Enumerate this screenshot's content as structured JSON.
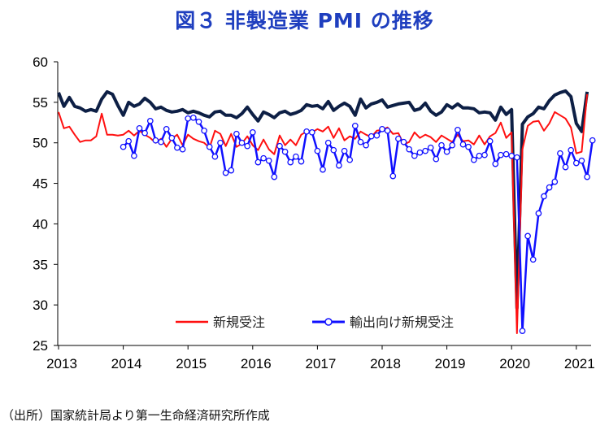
{
  "title": "図３ 非製造業 PMI の推移",
  "source": "（出所）国家統計局より第一生命経済研究所作成",
  "chart_data": {
    "type": "line",
    "title": "図３ 非製造業 PMI の推移",
    "xlabel": "",
    "ylabel": "",
    "ylim": [
      25,
      60
    ],
    "yticks": [
      25,
      30,
      35,
      40,
      45,
      50,
      55,
      60
    ],
    "xticks": [
      "2013",
      "2014",
      "2015",
      "2016",
      "2017",
      "2018",
      "2019",
      "2020",
      "2021"
    ],
    "legend_position": "bottom-center",
    "grid": false,
    "colors": {
      "new_orders": "#ff1010",
      "export_orders": "#1010ff",
      "pmi": "#0d1f45",
      "title": "#1f3fbf"
    },
    "series": [
      {
        "name": "非製造業PMI (unlabeled)",
        "key": "pmi",
        "start": "2013-01",
        "values": [
          56.2,
          54.5,
          55.6,
          54.5,
          54.3,
          53.9,
          54.1,
          53.9,
          55.4,
          56.3,
          56.0,
          54.6,
          53.4,
          55.0,
          54.5,
          54.8,
          55.5,
          55.0,
          54.2,
          54.4,
          54.0,
          53.8,
          53.9,
          54.1,
          53.7,
          53.9,
          53.7,
          53.4,
          53.2,
          53.8,
          53.9,
          53.4,
          53.4,
          53.1,
          53.6,
          54.4,
          53.5,
          52.7,
          53.8,
          53.5,
          53.1,
          53.7,
          53.9,
          53.5,
          53.7,
          54.0,
          54.7,
          54.5,
          54.6,
          54.2,
          55.1,
          54.0,
          54.5,
          54.9,
          54.5,
          53.4,
          55.4,
          54.3,
          54.8,
          55.0,
          55.3,
          54.4,
          54.6,
          54.8,
          54.9,
          55.0,
          54.0,
          54.2,
          54.9,
          53.9,
          53.4,
          53.8,
          54.7,
          54.3,
          54.8,
          54.3,
          54.3,
          54.2,
          53.7,
          53.8,
          53.7,
          52.8,
          54.4,
          53.5,
          54.1,
          29.6,
          52.3,
          53.2,
          53.6,
          54.4,
          54.2,
          55.2,
          55.9,
          56.2,
          56.4,
          55.7,
          52.4,
          51.4,
          56.3
        ]
      },
      {
        "name": "新規受注",
        "key": "new_orders",
        "start": "2013-01",
        "values": [
          53.8,
          51.8,
          52.0,
          51.0,
          50.1,
          50.3,
          50.3,
          50.8,
          53.6,
          51.0,
          51.0,
          50.9,
          51.0,
          51.5,
          50.9,
          51.5,
          51.0,
          50.6,
          50.0,
          50.5,
          49.5,
          50.5,
          51.0,
          49.7,
          51.0,
          50.5,
          50.2,
          50.0,
          49.4,
          51.5,
          51.1,
          49.6,
          51.1,
          49.5,
          49.9,
          50.8,
          49.7,
          49.1,
          50.4,
          49.2,
          48.6,
          50.9,
          49.7,
          50.4,
          49.7,
          51.0,
          51.4,
          51.3,
          51.7,
          51.4,
          52.0,
          50.6,
          51.8,
          50.3,
          50.8,
          50.5,
          51.4,
          51.0,
          50.7,
          51.5,
          51.6,
          51.9,
          51.1,
          51.2,
          49.8,
          50.1,
          51.3,
          50.6,
          51.0,
          50.7,
          50.1,
          50.9,
          50.5,
          50.1,
          51.0,
          50.2,
          50.3,
          49.8,
          50.9,
          49.8,
          50.8,
          51.2,
          52.5,
          50.6,
          51.3,
          26.5,
          49.2,
          52.1,
          52.6,
          52.7,
          51.5,
          52.4,
          53.8,
          53.4,
          53.0,
          51.9,
          48.7,
          48.9,
          56.0
        ]
      },
      {
        "name": "輸出向け新規受注",
        "key": "export_orders",
        "start": "2014-01",
        "values": [
          49.5,
          50.2,
          48.4,
          51.8,
          51.2,
          52.7,
          50.3,
          50.1,
          51.7,
          50.6,
          49.4,
          49.2,
          53.0,
          53.1,
          52.6,
          51.5,
          49.5,
          48.3,
          50.0,
          46.3,
          46.6,
          51.1,
          50.0,
          49.6,
          51.3,
          47.6,
          48.1,
          47.8,
          45.8,
          49.6,
          48.9,
          47.6,
          48.3,
          47.7,
          51.4,
          51.3,
          49.0,
          46.7,
          50.0,
          49.1,
          47.2,
          49.0,
          47.9,
          52.1,
          50.1,
          49.7,
          50.8,
          50.9,
          51.7,
          51.5,
          45.9,
          50.5,
          50.1,
          49.2,
          48.4,
          48.8,
          49.0,
          49.4,
          48.0,
          49.7,
          48.9,
          49.7,
          51.6,
          49.8,
          49.5,
          47.9,
          48.4,
          48.5,
          50.2,
          47.4,
          48.5,
          48.6,
          48.4,
          48.2,
          26.8,
          38.5,
          35.6,
          41.3,
          43.4,
          44.5,
          45.2,
          48.7,
          47.0,
          49.1,
          47.5,
          47.8,
          45.8,
          50.3
        ]
      }
    ]
  }
}
